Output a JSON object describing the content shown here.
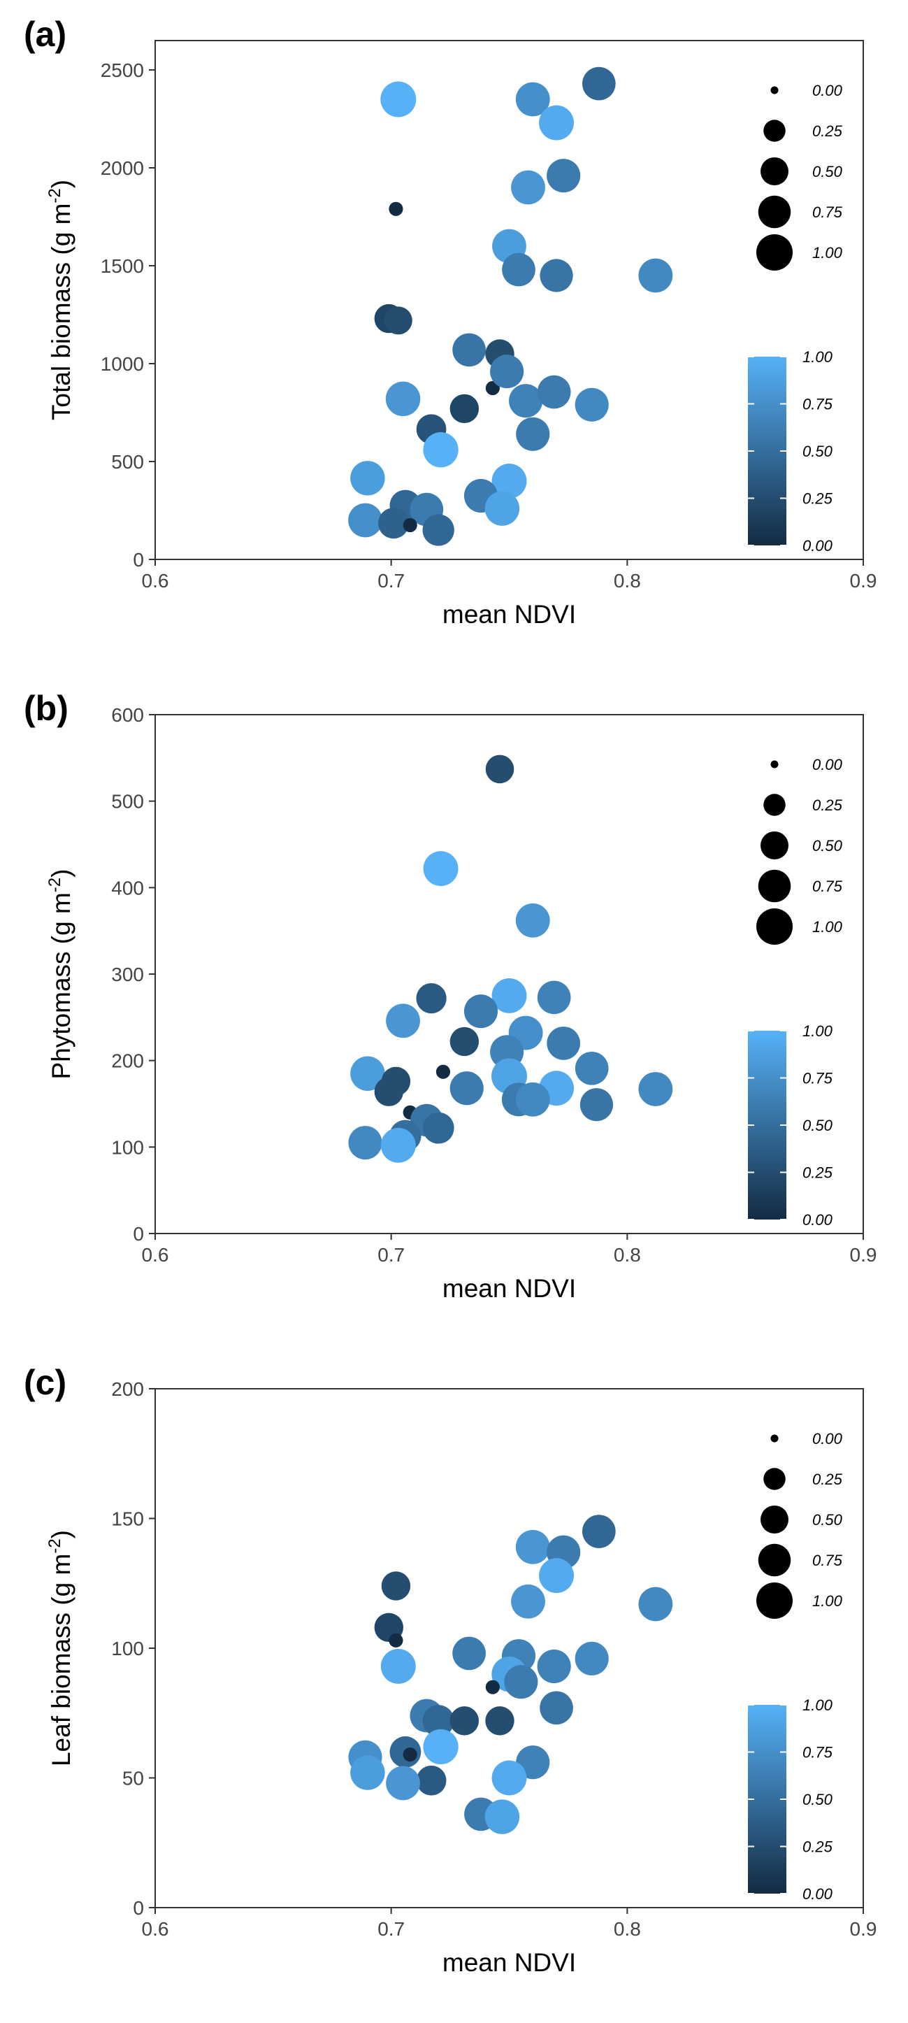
{
  "figure": {
    "panels": [
      {
        "label": "(a)"
      },
      {
        "label": "(b)"
      },
      {
        "label": "(c)"
      }
    ]
  },
  "chart_data": [
    {
      "type": "scatter",
      "panel": "(a)",
      "xlabel": "mean NDVI",
      "ylabel": "Total biomass (g m",
      "ylabel_sup": "-2",
      "ylabel_end": ")",
      "xlim": [
        0.6,
        0.9
      ],
      "ylim": [
        0,
        2650
      ],
      "xticks": [
        0.6,
        0.7,
        0.8,
        0.9
      ],
      "xtick_labels": [
        "0.6",
        "0.7",
        "0.8",
        "0.9"
      ],
      "yticks": [
        0,
        500,
        1000,
        1500,
        2000,
        2500
      ],
      "ytick_labels": [
        "0",
        "500",
        "1000",
        "1500",
        "2000",
        "2500"
      ],
      "size_legend": [
        "0.00",
        "0.25",
        "0.50",
        "0.75",
        "1.00"
      ],
      "color_legend": [
        "1.00",
        "0.75",
        "0.50",
        "0.25",
        "0.00"
      ],
      "colors": {
        "low": "#132B43",
        "high": "#56B1F7"
      },
      "points": [
        {
          "x": 0.703,
          "y": 2350,
          "size": 0.95,
          "color": 1.0
        },
        {
          "x": 0.76,
          "y": 2350,
          "size": 0.85,
          "color": 0.75
        },
        {
          "x": 0.788,
          "y": 2430,
          "size": 0.8,
          "color": 0.45
        },
        {
          "x": 0.77,
          "y": 2230,
          "size": 0.9,
          "color": 0.95
        },
        {
          "x": 0.773,
          "y": 1960,
          "size": 0.82,
          "color": 0.6
        },
        {
          "x": 0.758,
          "y": 1900,
          "size": 0.85,
          "color": 0.8
        },
        {
          "x": 0.702,
          "y": 1790,
          "size": 0.05,
          "color": 0.0
        },
        {
          "x": 0.75,
          "y": 1600,
          "size": 0.85,
          "color": 0.85
        },
        {
          "x": 0.754,
          "y": 1480,
          "size": 0.8,
          "color": 0.6
        },
        {
          "x": 0.77,
          "y": 1450,
          "size": 0.78,
          "color": 0.55
        },
        {
          "x": 0.812,
          "y": 1450,
          "size": 0.85,
          "color": 0.7
        },
        {
          "x": 0.699,
          "y": 1230,
          "size": 0.55,
          "color": 0.2
        },
        {
          "x": 0.703,
          "y": 1220,
          "size": 0.5,
          "color": 0.25
        },
        {
          "x": 0.733,
          "y": 1070,
          "size": 0.8,
          "color": 0.55
        },
        {
          "x": 0.746,
          "y": 1050,
          "size": 0.55,
          "color": 0.25
        },
        {
          "x": 0.743,
          "y": 875,
          "size": 0.05,
          "color": 0.0
        },
        {
          "x": 0.749,
          "y": 960,
          "size": 0.82,
          "color": 0.6
        },
        {
          "x": 0.705,
          "y": 820,
          "size": 0.88,
          "color": 0.8
        },
        {
          "x": 0.757,
          "y": 810,
          "size": 0.82,
          "color": 0.65
        },
        {
          "x": 0.769,
          "y": 855,
          "size": 0.8,
          "color": 0.6
        },
        {
          "x": 0.785,
          "y": 790,
          "size": 0.82,
          "color": 0.7
        },
        {
          "x": 0.731,
          "y": 770,
          "size": 0.55,
          "color": 0.2
        },
        {
          "x": 0.717,
          "y": 665,
          "size": 0.6,
          "color": 0.3
        },
        {
          "x": 0.76,
          "y": 640,
          "size": 0.82,
          "color": 0.6
        },
        {
          "x": 0.721,
          "y": 560,
          "size": 0.92,
          "color": 1.0
        },
        {
          "x": 0.69,
          "y": 415,
          "size": 0.88,
          "color": 0.85
        },
        {
          "x": 0.75,
          "y": 400,
          "size": 0.9,
          "color": 0.95
        },
        {
          "x": 0.738,
          "y": 325,
          "size": 0.82,
          "color": 0.6
        },
        {
          "x": 0.706,
          "y": 275,
          "size": 0.68,
          "color": 0.45
        },
        {
          "x": 0.715,
          "y": 255,
          "size": 0.8,
          "color": 0.6
        },
        {
          "x": 0.747,
          "y": 260,
          "size": 0.88,
          "color": 0.9
        },
        {
          "x": 0.689,
          "y": 200,
          "size": 0.85,
          "color": 0.75
        },
        {
          "x": 0.701,
          "y": 185,
          "size": 0.65,
          "color": 0.4
        },
        {
          "x": 0.708,
          "y": 175,
          "size": 0.05,
          "color": 0.0
        },
        {
          "x": 0.72,
          "y": 150,
          "size": 0.7,
          "color": 0.45
        }
      ]
    },
    {
      "type": "scatter",
      "panel": "(b)",
      "xlabel": "mean NDVI",
      "ylabel": "Phytomass (g m",
      "ylabel_sup": "-2",
      "ylabel_end": ")",
      "xlim": [
        0.6,
        0.9
      ],
      "ylim": [
        0,
        600
      ],
      "xticks": [
        0.6,
        0.7,
        0.8,
        0.9
      ],
      "xtick_labels": [
        "0.6",
        "0.7",
        "0.8",
        "0.9"
      ],
      "yticks": [
        0,
        100,
        200,
        300,
        400,
        500,
        600
      ],
      "ytick_labels": [
        "0",
        "100",
        "200",
        "300",
        "400",
        "500",
        "600"
      ],
      "size_legend": [
        "0.00",
        "0.25",
        "0.50",
        "0.75",
        "1.00"
      ],
      "color_legend": [
        "1.00",
        "0.75",
        "0.50",
        "0.25",
        "0.00"
      ],
      "colors": {
        "low": "#132B43",
        "high": "#56B1F7"
      },
      "points": [
        {
          "x": 0.746,
          "y": 537,
          "size": 0.52,
          "color": 0.25
        },
        {
          "x": 0.721,
          "y": 422,
          "size": 0.9,
          "color": 1.0
        },
        {
          "x": 0.76,
          "y": 362,
          "size": 0.85,
          "color": 0.8
        },
        {
          "x": 0.75,
          "y": 275,
          "size": 0.9,
          "color": 0.95
        },
        {
          "x": 0.769,
          "y": 273,
          "size": 0.8,
          "color": 0.65
        },
        {
          "x": 0.717,
          "y": 272,
          "size": 0.62,
          "color": 0.35
        },
        {
          "x": 0.738,
          "y": 257,
          "size": 0.82,
          "color": 0.6
        },
        {
          "x": 0.705,
          "y": 246,
          "size": 0.85,
          "color": 0.8
        },
        {
          "x": 0.757,
          "y": 232,
          "size": 0.85,
          "color": 0.75
        },
        {
          "x": 0.731,
          "y": 222,
          "size": 0.55,
          "color": 0.25
        },
        {
          "x": 0.773,
          "y": 220,
          "size": 0.8,
          "color": 0.6
        },
        {
          "x": 0.749,
          "y": 210,
          "size": 0.82,
          "color": 0.65
        },
        {
          "x": 0.785,
          "y": 191,
          "size": 0.8,
          "color": 0.65
        },
        {
          "x": 0.722,
          "y": 187,
          "size": 0.05,
          "color": 0.0
        },
        {
          "x": 0.69,
          "y": 185,
          "size": 0.88,
          "color": 0.85
        },
        {
          "x": 0.75,
          "y": 182,
          "size": 0.95,
          "color": 0.9
        },
        {
          "x": 0.702,
          "y": 176,
          "size": 0.55,
          "color": 0.25
        },
        {
          "x": 0.732,
          "y": 168,
          "size": 0.82,
          "color": 0.6
        },
        {
          "x": 0.77,
          "y": 168,
          "size": 0.9,
          "color": 0.95
        },
        {
          "x": 0.812,
          "y": 167,
          "size": 0.85,
          "color": 0.7
        },
        {
          "x": 0.699,
          "y": 164,
          "size": 0.55,
          "color": 0.25
        },
        {
          "x": 0.754,
          "y": 155,
          "size": 0.82,
          "color": 0.6
        },
        {
          "x": 0.76,
          "y": 155,
          "size": 0.85,
          "color": 0.7
        },
        {
          "x": 0.787,
          "y": 149,
          "size": 0.78,
          "color": 0.55
        },
        {
          "x": 0.708,
          "y": 140,
          "size": 0.05,
          "color": 0.0
        },
        {
          "x": 0.715,
          "y": 131,
          "size": 0.75,
          "color": 0.55
        },
        {
          "x": 0.72,
          "y": 122,
          "size": 0.68,
          "color": 0.45
        },
        {
          "x": 0.706,
          "y": 113,
          "size": 0.7,
          "color": 0.5
        },
        {
          "x": 0.689,
          "y": 105,
          "size": 0.82,
          "color": 0.7
        },
        {
          "x": 0.703,
          "y": 102,
          "size": 0.9,
          "color": 0.95
        }
      ]
    },
    {
      "type": "scatter",
      "panel": "(c)",
      "xlabel": "mean NDVI",
      "ylabel": "Leaf biomass (g m",
      "ylabel_sup": "-2",
      "ylabel_end": ")",
      "xlim": [
        0.6,
        0.9
      ],
      "ylim": [
        0,
        200
      ],
      "xticks": [
        0.6,
        0.7,
        0.8,
        0.9
      ],
      "xtick_labels": [
        "0.6",
        "0.7",
        "0.8",
        "0.9"
      ],
      "yticks": [
        0,
        50,
        100,
        150,
        200
      ],
      "ytick_labels": [
        "0",
        "50",
        "100",
        "150",
        "200"
      ],
      "size_legend": [
        "0.00",
        "0.25",
        "0.50",
        "0.75",
        "1.00"
      ],
      "color_legend": [
        "1.00",
        "0.75",
        "0.50",
        "0.25",
        "0.00"
      ],
      "colors": {
        "low": "#132B43",
        "high": "#56B1F7"
      },
      "points": [
        {
          "x": 0.788,
          "y": 145,
          "size": 0.8,
          "color": 0.45
        },
        {
          "x": 0.76,
          "y": 139,
          "size": 0.85,
          "color": 0.8
        },
        {
          "x": 0.773,
          "y": 137,
          "size": 0.82,
          "color": 0.6
        },
        {
          "x": 0.77,
          "y": 128,
          "size": 0.9,
          "color": 0.95
        },
        {
          "x": 0.702,
          "y": 124,
          "size": 0.55,
          "color": 0.25
        },
        {
          "x": 0.758,
          "y": 118,
          "size": 0.85,
          "color": 0.8
        },
        {
          "x": 0.812,
          "y": 117,
          "size": 0.85,
          "color": 0.7
        },
        {
          "x": 0.699,
          "y": 108,
          "size": 0.55,
          "color": 0.2
        },
        {
          "x": 0.702,
          "y": 103,
          "size": 0.05,
          "color": 0.0
        },
        {
          "x": 0.733,
          "y": 98,
          "size": 0.8,
          "color": 0.6
        },
        {
          "x": 0.754,
          "y": 97,
          "size": 0.82,
          "color": 0.65
        },
        {
          "x": 0.785,
          "y": 96,
          "size": 0.82,
          "color": 0.7
        },
        {
          "x": 0.703,
          "y": 93,
          "size": 0.9,
          "color": 0.95
        },
        {
          "x": 0.769,
          "y": 93,
          "size": 0.82,
          "color": 0.65
        },
        {
          "x": 0.75,
          "y": 90,
          "size": 0.92,
          "color": 0.9
        },
        {
          "x": 0.755,
          "y": 87,
          "size": 0.82,
          "color": 0.6
        },
        {
          "x": 0.743,
          "y": 85,
          "size": 0.05,
          "color": 0.0
        },
        {
          "x": 0.77,
          "y": 77,
          "size": 0.8,
          "color": 0.55
        },
        {
          "x": 0.715,
          "y": 74,
          "size": 0.8,
          "color": 0.6
        },
        {
          "x": 0.72,
          "y": 72,
          "size": 0.7,
          "color": 0.45
        },
        {
          "x": 0.731,
          "y": 72,
          "size": 0.55,
          "color": 0.25
        },
        {
          "x": 0.746,
          "y": 72,
          "size": 0.55,
          "color": 0.25
        },
        {
          "x": 0.721,
          "y": 62,
          "size": 0.92,
          "color": 1.0
        },
        {
          "x": 0.706,
          "y": 60,
          "size": 0.68,
          "color": 0.45
        },
        {
          "x": 0.708,
          "y": 59,
          "size": 0.05,
          "color": 0.0
        },
        {
          "x": 0.689,
          "y": 58,
          "size": 0.82,
          "color": 0.75
        },
        {
          "x": 0.76,
          "y": 56,
          "size": 0.82,
          "color": 0.65
        },
        {
          "x": 0.69,
          "y": 52,
          "size": 0.88,
          "color": 0.85
        },
        {
          "x": 0.75,
          "y": 50,
          "size": 0.9,
          "color": 0.95
        },
        {
          "x": 0.717,
          "y": 49,
          "size": 0.6,
          "color": 0.35
        },
        {
          "x": 0.705,
          "y": 48,
          "size": 0.85,
          "color": 0.8
        },
        {
          "x": 0.738,
          "y": 36,
          "size": 0.8,
          "color": 0.6
        },
        {
          "x": 0.747,
          "y": 35,
          "size": 0.88,
          "color": 0.9
        }
      ]
    }
  ]
}
